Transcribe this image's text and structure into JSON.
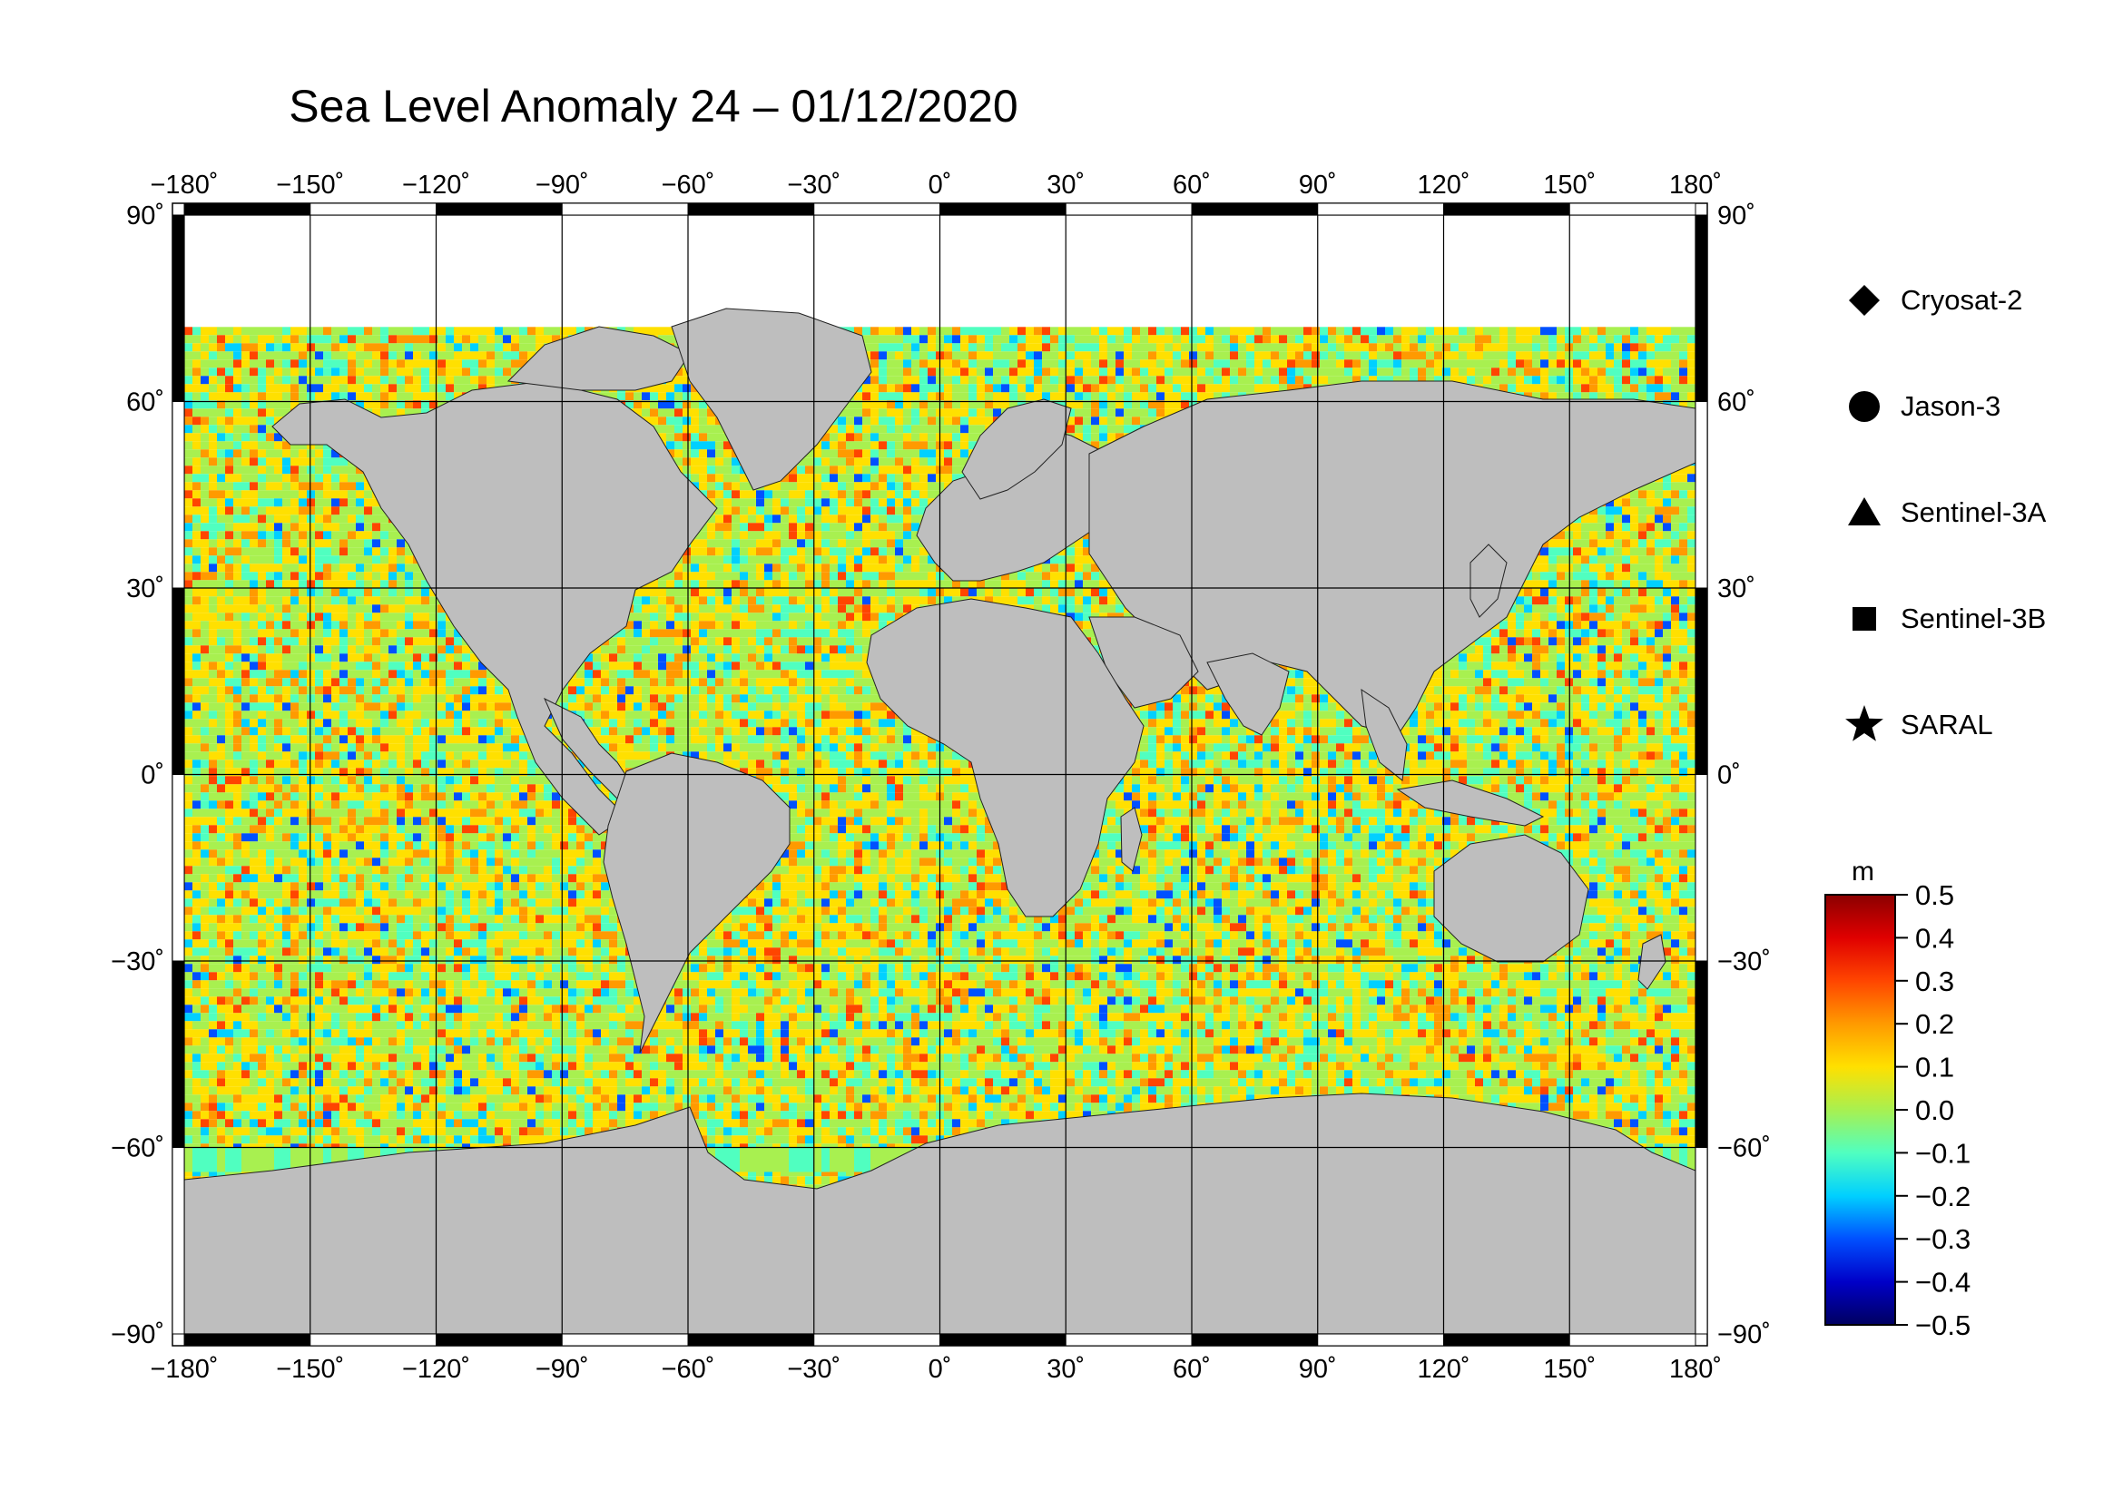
{
  "title": "Sea Level Anomaly 24 – 01/12/2020",
  "map": {
    "projection": "equirectangular",
    "lon_range": [
      -180,
      180
    ],
    "lat_range": [
      -90,
      90
    ],
    "lon_ticks": [
      "−180˚",
      "−150˚",
      "−120˚",
      "−90˚",
      "−60˚",
      "−30˚",
      "0˚",
      "30˚",
      "60˚",
      "90˚",
      "120˚",
      "150˚",
      "180˚"
    ],
    "lat_ticks_left": [
      "90˚",
      "60˚",
      "30˚",
      "0˚",
      "−30˚",
      "−60˚",
      "−90˚"
    ],
    "lat_ticks_right": [
      "90˚",
      "60˚",
      "30˚",
      "0˚",
      "−30˚",
      "−60˚",
      "−90˚"
    ],
    "grid": true,
    "land_color": "#bebebe",
    "no_data_color": "#ffffff"
  },
  "legend": {
    "items": [
      {
        "label": "Cryosat-2",
        "marker": "diamond"
      },
      {
        "label": "Jason-3",
        "marker": "circle"
      },
      {
        "label": "Sentinel-3A",
        "marker": "triangle"
      },
      {
        "label": "Sentinel-3B",
        "marker": "square"
      },
      {
        "label": "SARAL",
        "marker": "star"
      }
    ]
  },
  "colorbar": {
    "unit": "m",
    "min": -0.5,
    "max": 0.5,
    "tick_labels": [
      "0.5",
      "0.4",
      "0.3",
      "0.2",
      "0.1",
      "0.0",
      "−0.1",
      "−0.2",
      "−0.3",
      "−0.4",
      "−0.5"
    ],
    "colors": [
      "#8b0000",
      "#e00000",
      "#ff4500",
      "#ff9a00",
      "#ffe000",
      "#a8f050",
      "#50ffc0",
      "#00d0ff",
      "#0050ff",
      "#0000c8",
      "#000060"
    ]
  }
}
